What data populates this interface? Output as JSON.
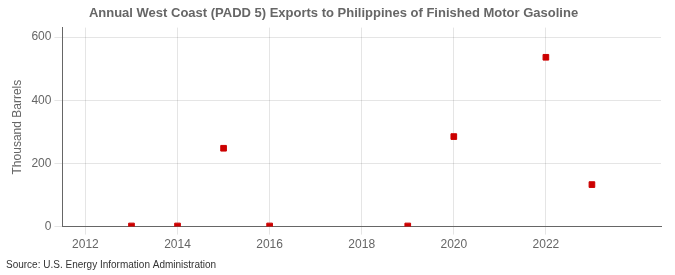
{
  "chart_data": {
    "type": "scatter",
    "title": "Annual West Coast (PADD 5) Exports to Philippines of Finished Motor Gasoline",
    "ylabel": "Thousand Barrels",
    "annotations": [
      "Source: U.S. Energy Information Administration"
    ],
    "x": [
      2013,
      2014,
      2015,
      2016,
      2019,
      2020,
      2022,
      2023
    ],
    "values": [
      2,
      2,
      248,
      2,
      2,
      285,
      536,
      133
    ],
    "color": "#cc0000",
    "marker": "square",
    "xlim": [
      2011.5,
      2024.5
    ],
    "xticks": [
      2012,
      2014,
      2016,
      2018,
      2020,
      2022
    ],
    "ylim": [
      0,
      630
    ],
    "yticks": [
      0,
      200,
      400,
      600
    ],
    "grid": true
  }
}
